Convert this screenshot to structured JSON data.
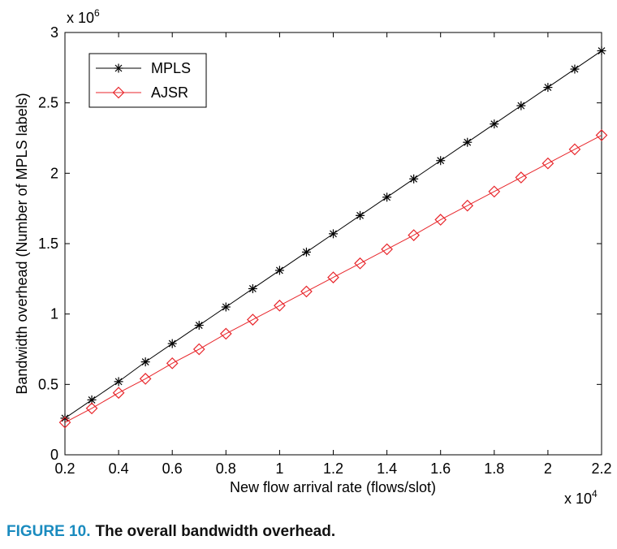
{
  "chart_data": {
    "type": "line",
    "title": "",
    "xlabel": "New flow arrival rate (flows/slot)",
    "ylabel": "Bandwidth overhead (Number of MPLS labels)",
    "x_multiplier_label": "x 10",
    "x_multiplier_exp": "4",
    "y_multiplier_label": "x 10",
    "y_multiplier_exp": "6",
    "xlim": [
      0.2,
      2.2
    ],
    "ylim": [
      0,
      3
    ],
    "xticks": [
      "0.2",
      "0.4",
      "0.6",
      "0.8",
      "1",
      "1.2",
      "1.4",
      "1.6",
      "1.8",
      "2",
      "2.2"
    ],
    "yticks": [
      "0",
      "0.5",
      "1",
      "1.5",
      "2",
      "2.5",
      "3"
    ],
    "legend_position": "top-left",
    "grid": false,
    "x": [
      0.2,
      0.3,
      0.4,
      0.5,
      0.6,
      0.7,
      0.8,
      0.9,
      1.0,
      1.1,
      1.2,
      1.3,
      1.4,
      1.5,
      1.6,
      1.7,
      1.8,
      1.9,
      2.0,
      2.1,
      2.2
    ],
    "series": [
      {
        "name": "MPLS",
        "color": "#000000",
        "marker": "asterisk",
        "values": [
          0.26,
          0.39,
          0.52,
          0.66,
          0.79,
          0.92,
          1.05,
          1.18,
          1.31,
          1.44,
          1.57,
          1.7,
          1.83,
          1.96,
          2.09,
          2.22,
          2.35,
          2.48,
          2.61,
          2.74,
          2.87
        ]
      },
      {
        "name": "AJSR",
        "color": "#e8262b",
        "marker": "diamond",
        "values": [
          0.23,
          0.33,
          0.44,
          0.54,
          0.65,
          0.75,
          0.86,
          0.96,
          1.06,
          1.16,
          1.26,
          1.36,
          1.46,
          1.56,
          1.67,
          1.77,
          1.87,
          1.97,
          2.07,
          2.17,
          2.27
        ]
      }
    ]
  },
  "caption": {
    "label": "FIGURE 10.",
    "text": "The overall bandwidth overhead."
  }
}
